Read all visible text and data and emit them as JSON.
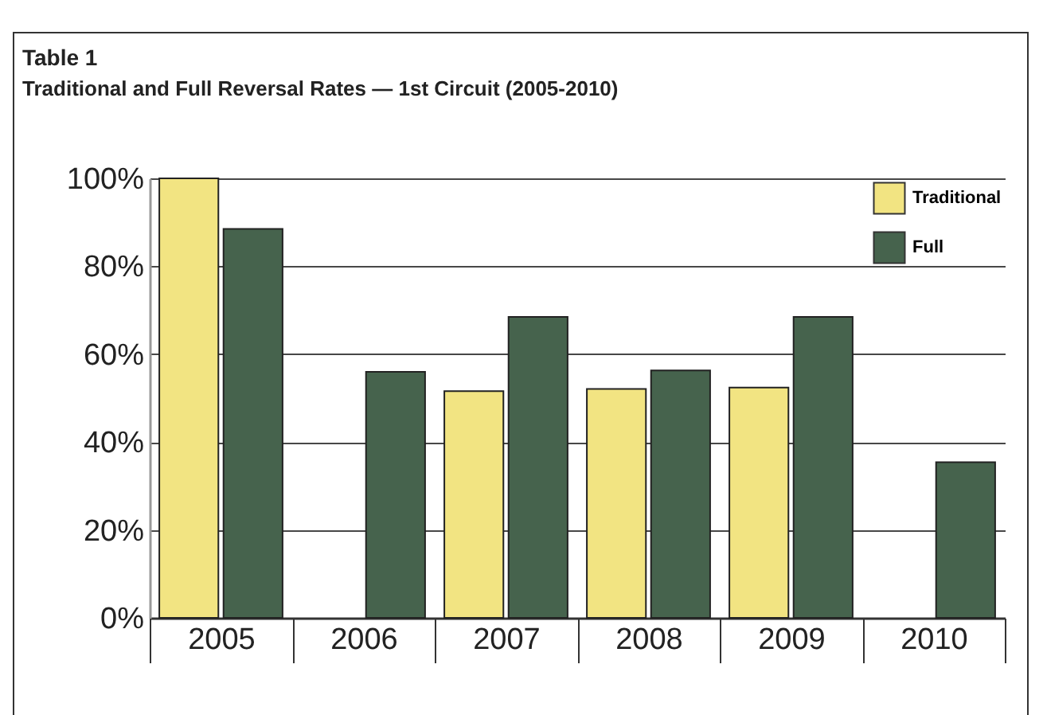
{
  "chart_data": {
    "type": "bar",
    "title": "Table 1",
    "subtitle": "Traditional and Full Reversal Rates — 1st Circuit (2005-2010)",
    "categories": [
      "2005",
      "2006",
      "2007",
      "2008",
      "2009",
      "2010"
    ],
    "series": [
      {
        "name": "Traditional",
        "color": "#f2e482",
        "values": [
          100,
          0,
          51.6,
          52.1,
          52.4,
          0
        ]
      },
      {
        "name": "Full",
        "color": "#46634d",
        "values": [
          88.5,
          56,
          68.5,
          56.3,
          68.5,
          35.4
        ]
      }
    ],
    "ylim": [
      0,
      100
    ],
    "yticks": [
      {
        "value": 0,
        "label": "0%"
      },
      {
        "value": 20,
        "label": "20%"
      },
      {
        "value": 40,
        "label": "40%"
      },
      {
        "value": 60,
        "label": "60%"
      },
      {
        "value": 80,
        "label": "80%"
      },
      {
        "value": 100,
        "label": "100%"
      }
    ],
    "grid": "y",
    "legend": "top right"
  }
}
